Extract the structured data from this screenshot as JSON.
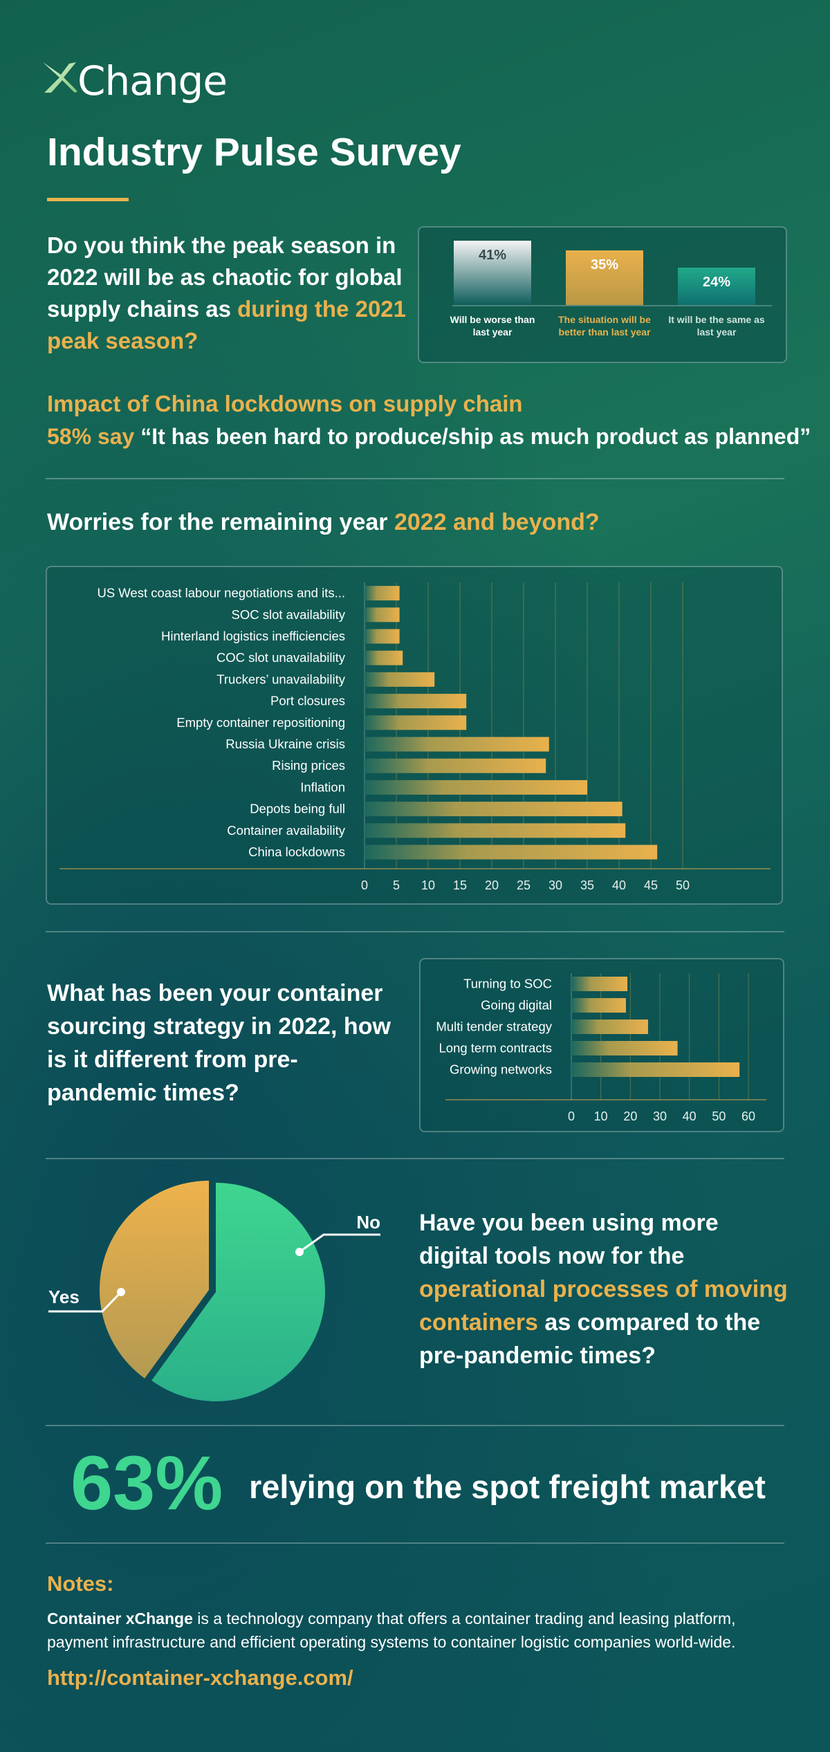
{
  "brand": {
    "logo_text": "Change"
  },
  "title": "Industry Pulse Survey",
  "colors": {
    "accent": "#e9b14d",
    "green": "#3fd690",
    "teal": "#0f5a5a"
  },
  "peak_season": {
    "question_line1": "Do you think the peak season in 2022 will be as chaotic for global supply chains as",
    "question_highlight": "during the 2021 peak season?",
    "chart_data": {
      "type": "bar",
      "categories": [
        "Will be worse than last year",
        "The situation will be better than last year",
        "It will be the same as last year"
      ],
      "values": [
        41,
        35,
        24
      ],
      "value_labels": [
        "41%",
        "35%",
        "24%"
      ]
    }
  },
  "impact": {
    "heading": "Impact of China lockdowns on supply chain",
    "stat": "58% say",
    "quote": "“It has been hard to produce/ship as much product as planned”"
  },
  "worries": {
    "heading_plain": "Worries for the remaining year",
    "heading_highlight": "2022 and beyond?",
    "chart_data": {
      "type": "bar",
      "orientation": "horizontal",
      "categories": [
        "US West coast labour negotiations and its...",
        "SOC slot availability",
        "Hinterland logistics inefficiencies",
        "COC slot unavailability",
        "Truckers’ unavailability",
        "Port closures",
        "Empty container repositioning",
        "Russia Ukraine crisis",
        "Rising prices",
        "Inflation",
        "Depots being full",
        "Container availability",
        "China lockdowns"
      ],
      "values": [
        5.5,
        5.5,
        5.5,
        6,
        11,
        16,
        16,
        29,
        28.5,
        35,
        40.5,
        41,
        46
      ],
      "xlim": [
        0,
        50
      ],
      "xticks": [
        "0",
        "5",
        "10",
        "15",
        "20",
        "25",
        "30",
        "35",
        "40",
        "45",
        "50"
      ]
    }
  },
  "sourcing": {
    "question": "What has been your container sourcing strategy in 2022, how is it different from pre-pandemic times?",
    "chart_data": {
      "type": "bar",
      "orientation": "horizontal",
      "categories": [
        "Turning to SOC",
        "Going digital",
        "Multi tender strategy",
        "Long term contracts",
        "Growing networks"
      ],
      "values": [
        19,
        18.5,
        26,
        36,
        57
      ],
      "xlim": [
        0,
        60
      ],
      "xticks": [
        "0",
        "10",
        "20",
        "30",
        "40",
        "50",
        "60"
      ]
    }
  },
  "digital": {
    "q_part1": "Have you been using more digital tools now for the",
    "q_highlight": "operational processes of moving containers",
    "q_part2": "as compared to the pre-pandemic times?",
    "chart_data": {
      "type": "pie",
      "categories": [
        "No",
        "Yes"
      ],
      "values": [
        60,
        40
      ],
      "labels": [
        "No",
        "Yes"
      ]
    }
  },
  "spot": {
    "percent": "63%",
    "text": "relying on the spot freight market"
  },
  "notes": {
    "heading": "Notes:",
    "company": "Container xChange",
    "body": " is a technology company that offers a container trading and leasing platform, payment infrastructure and efficient operating systems to container logistic companies world-wide.",
    "url": "http://container-xchange.com/"
  }
}
